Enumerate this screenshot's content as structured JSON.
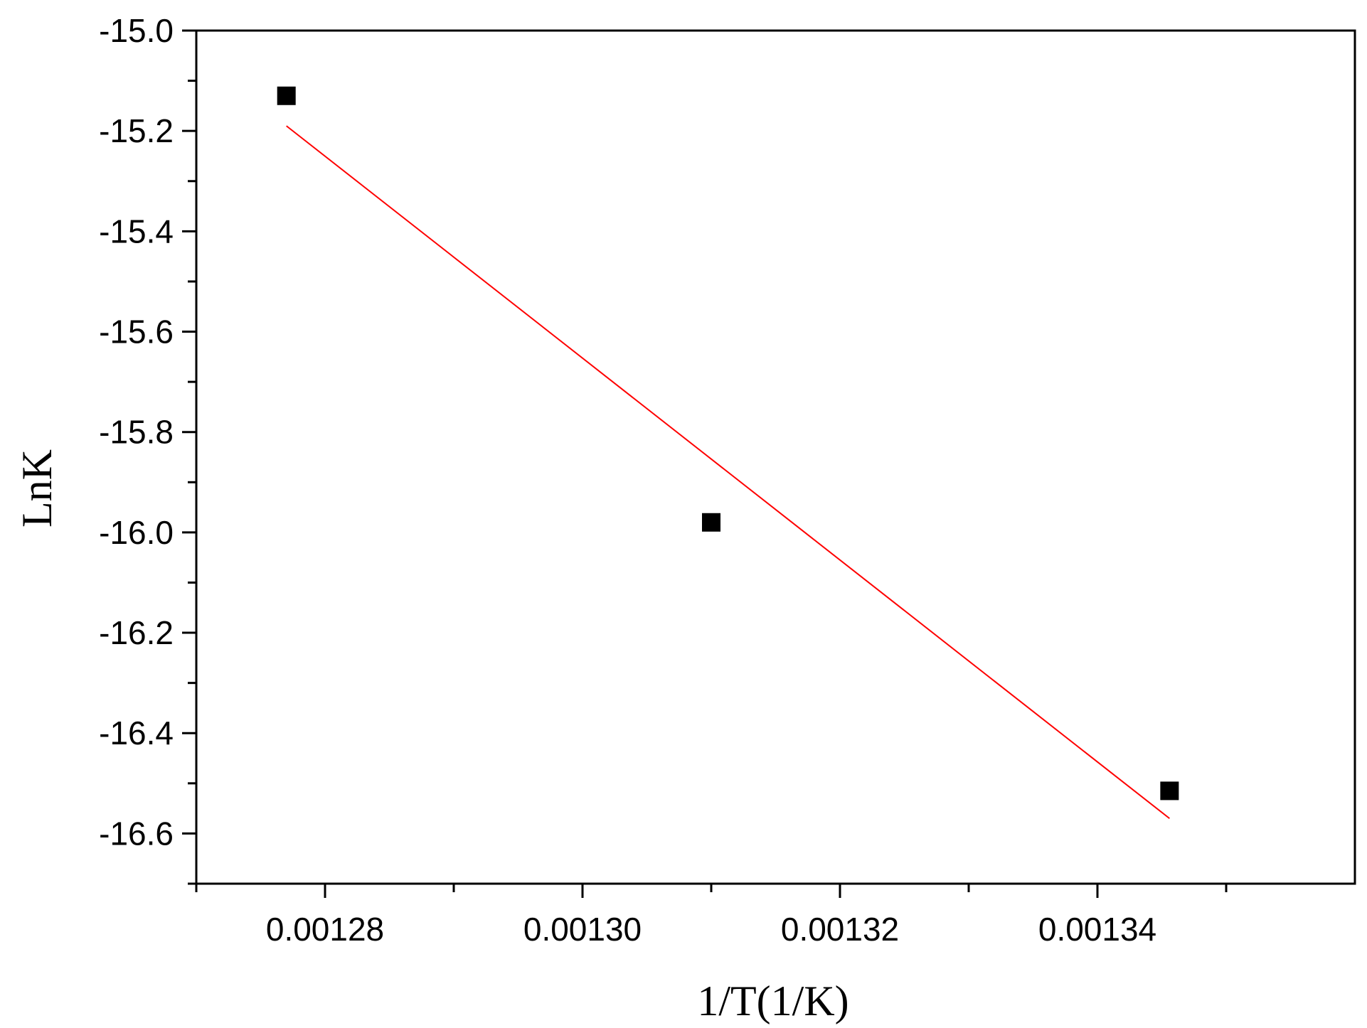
{
  "chart_data": {
    "type": "scatter",
    "title": "",
    "xlabel": "1/T(1/K)",
    "ylabel": "LnK",
    "xlim": [
      0.00127,
      0.00136
    ],
    "ylim": [
      -16.7,
      -15.0
    ],
    "x_ticks": [
      0.00128,
      0.0013,
      0.00132,
      0.00134
    ],
    "x_tick_labels": [
      "0.00128",
      "0.00130",
      "0.00132",
      "0.00134"
    ],
    "x_minor_ticks": [
      0.00127,
      0.00129,
      0.00131,
      0.00133,
      0.00135
    ],
    "y_ticks": [
      -15.0,
      -15.2,
      -15.4,
      -15.6,
      -15.8,
      -16.0,
      -16.2,
      -16.4,
      -16.6
    ],
    "y_tick_labels": [
      "-15.0",
      "-15.2",
      "-15.4",
      "-15.6",
      "-15.8",
      "-16.0",
      "-16.2",
      "-16.4",
      "-16.6"
    ],
    "y_minor_ticks": [
      -15.1,
      -15.3,
      -15.5,
      -15.7,
      -15.9,
      -16.1,
      -16.3,
      -16.5,
      -16.7
    ],
    "grid": false,
    "series": [
      {
        "kind": "scatter",
        "marker": "square",
        "color": "#000000",
        "points": [
          {
            "x": 0.001277,
            "y": -15.13
          },
          {
            "x": 0.00131,
            "y": -15.98
          },
          {
            "x": 0.0013456,
            "y": -16.515
          }
        ]
      },
      {
        "kind": "line",
        "role": "linear-fit",
        "color": "#ff0000",
        "points": [
          {
            "x": 0.001277,
            "y": -15.19
          },
          {
            "x": 0.0013456,
            "y": -16.57
          }
        ]
      }
    ]
  }
}
